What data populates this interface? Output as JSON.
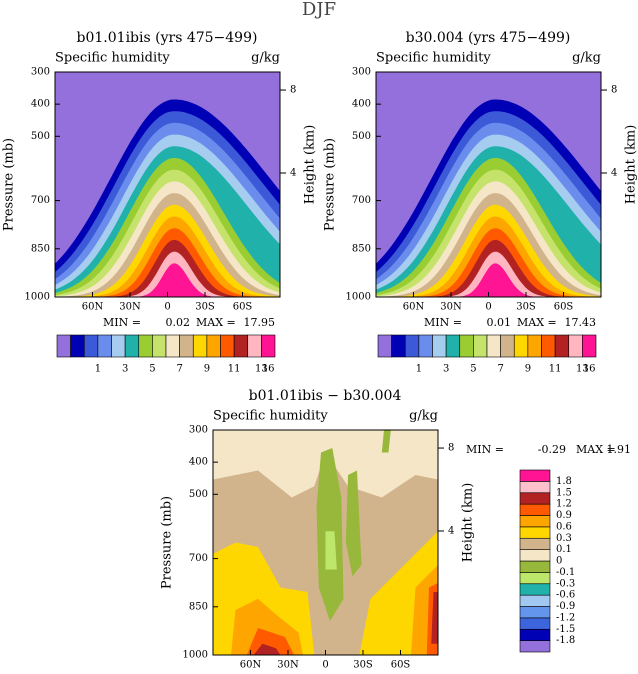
{
  "title": "DJF",
  "chart_data": [
    {
      "type": "contour",
      "title": "b01.01ibis (yrs 475−499)",
      "subtitle": "Specific humidity",
      "units": "g/kg",
      "ylabel": "Pressure (mb)",
      "y2label": "Height (km)",
      "ylim": [
        1000,
        300
      ],
      "yticks": [
        300,
        400,
        500,
        700,
        850,
        1000
      ],
      "y2lim": [
        -1.98,
        8.87
      ],
      "y2ticks": [
        4,
        8
      ],
      "xlim": [
        90,
        -90
      ],
      "xticks": [
        {
          "value": 60,
          "label": "60N"
        },
        {
          "value": 30,
          "label": "30N"
        },
        0,
        {
          "value": -30,
          "label": "30S"
        },
        {
          "value": -60,
          "label": "60S"
        }
      ],
      "min_label": "MIN =",
      "min": 0.02,
      "max_label": "MAX =",
      "max": 17.95,
      "colorbar": {
        "colors": [
          "#9370db",
          "#0000b4",
          "#3c5ad8",
          "#6a8ded",
          "#a6cdf0",
          "#20b2aa",
          "#9acd32",
          "#c5e36a",
          "#f5e6c8",
          "#d2b48c",
          "#ffd700",
          "#ffa500",
          "#ff5a00",
          "#b22222",
          "#ffb6c1",
          "#ff1493"
        ],
        "labels": [
          1,
          3,
          5,
          7,
          9,
          11,
          13,
          16
        ]
      }
    },
    {
      "type": "contour",
      "title": "b30.004 (yrs 475−499)",
      "subtitle": "Specific humidity",
      "units": "g/kg",
      "ylabel": "Pressure (mb)",
      "y2label": "Height (km)",
      "ylim": [
        1000,
        300
      ],
      "yticks": [
        300,
        400,
        500,
        700,
        850,
        1000
      ],
      "y2lim": [
        -1.98,
        8.87
      ],
      "y2ticks": [
        4,
        8
      ],
      "xlim": [
        90,
        -90
      ],
      "xticks": [
        {
          "value": 60,
          "label": "60N"
        },
        {
          "value": 30,
          "label": "30N"
        },
        0,
        {
          "value": -30,
          "label": "30S"
        },
        {
          "value": -60,
          "label": "60S"
        }
      ],
      "min_label": "MIN =",
      "min": 0.01,
      "max_label": "MAX =",
      "max": 17.43,
      "colorbar": {
        "colors": [
          "#9370db",
          "#0000b4",
          "#3c5ad8",
          "#6a8ded",
          "#a6cdf0",
          "#20b2aa",
          "#9acd32",
          "#c5e36a",
          "#f5e6c8",
          "#d2b48c",
          "#ffd700",
          "#ffa500",
          "#ff5a00",
          "#b22222",
          "#ffb6c1",
          "#ff1493"
        ],
        "labels": [
          1,
          3,
          5,
          7,
          9,
          11,
          13,
          16
        ]
      }
    },
    {
      "type": "contour-diff",
      "title": "b01.01ibis − b30.004",
      "subtitle": "Specific humidity",
      "units": "g/kg",
      "ylabel": "Pressure (mb)",
      "y2label": "Height (km)",
      "ylim": [
        1000,
        300
      ],
      "yticks": [
        300,
        400,
        500,
        700,
        850,
        1000
      ],
      "y2lim": [
        -1.98,
        8.87
      ],
      "y2ticks": [
        4,
        8
      ],
      "xlim": [
        90,
        -90
      ],
      "xticks": [
        {
          "value": 60,
          "label": "60N"
        },
        {
          "value": 30,
          "label": "30N"
        },
        0,
        {
          "value": -30,
          "label": "30S"
        },
        {
          "value": -60,
          "label": "60S"
        }
      ],
      "min_label": "MIN =",
      "min": -0.29,
      "max_label": "MAX =",
      "max": 1.91,
      "colorbar": {
        "colors": [
          "#9370db",
          "#0000b4",
          "#3c64dc",
          "#6495ed",
          "#a0c8f0",
          "#20b2aa",
          "#bde76b",
          "#98b83c",
          "#f5e6c8",
          "#d2b48c",
          "#ffd700",
          "#ffa500",
          "#ff5a00",
          "#b22222",
          "#ffc0cb",
          "#ff1493"
        ],
        "labels": [
          -1.8,
          -1.5,
          -1.2,
          -0.9,
          -0.6,
          -0.3,
          -0.1,
          0,
          0.1,
          0.3,
          0.6,
          0.9,
          1.2,
          1.5,
          1.8
        ]
      }
    }
  ]
}
